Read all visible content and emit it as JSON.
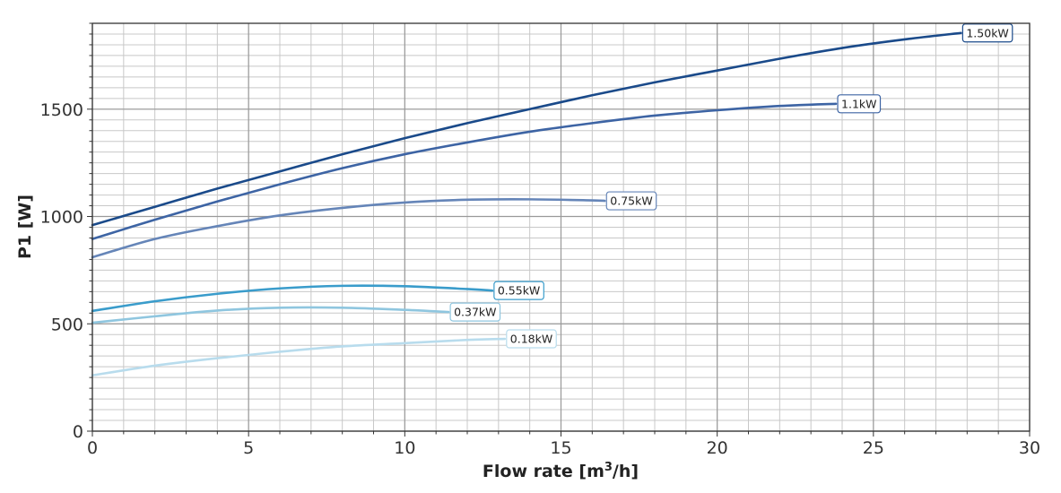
{
  "chart_data": {
    "type": "line",
    "title": "",
    "xlabel": "Flow rate [m³/h]",
    "xlabel_parts": {
      "main": "Flow rate [m",
      "sup": "3",
      "tail": "/h]"
    },
    "ylabel": "P1 [W]",
    "xlim": [
      0,
      30
    ],
    "ylim": [
      0,
      1900
    ],
    "x_ticks": [
      0,
      5,
      10,
      15,
      20,
      25,
      30
    ],
    "x_tick_labels": [
      "0",
      "5",
      "10",
      "15",
      "20",
      "25",
      "30"
    ],
    "y_ticks": [
      0,
      500,
      1000,
      1500
    ],
    "y_tick_labels": [
      "0",
      "500",
      "1000",
      "1500"
    ],
    "x_minor_step": 1,
    "y_minor_step": 50,
    "grid": true,
    "legend": "none",
    "series": [
      {
        "name": "1.50kW",
        "color": "#1a4a8a",
        "x": [
          0,
          2,
          4,
          6,
          8,
          10,
          12,
          14,
          16,
          18,
          20,
          22,
          24,
          26,
          27.8
        ],
        "y": [
          960,
          1045,
          1130,
          1210,
          1290,
          1365,
          1435,
          1500,
          1565,
          1625,
          1680,
          1735,
          1785,
          1825,
          1855
        ]
      },
      {
        "name": "1.1kW",
        "color": "#3d64a4",
        "x": [
          0,
          2,
          4,
          6,
          8,
          10,
          12,
          14,
          16,
          18,
          20,
          22,
          23.8
        ],
        "y": [
          895,
          985,
          1070,
          1150,
          1225,
          1290,
          1345,
          1395,
          1435,
          1470,
          1495,
          1515,
          1525
        ]
      },
      {
        "name": "0.75kW",
        "color": "#6585b8",
        "x": [
          0,
          2,
          4,
          6,
          8,
          10,
          12,
          14,
          16,
          16.4
        ],
        "y": [
          810,
          895,
          955,
          1005,
          1040,
          1065,
          1078,
          1080,
          1075,
          1073
        ]
      },
      {
        "name": "0.55kW",
        "color": "#3a9ccb",
        "x": [
          0,
          2,
          4,
          6,
          8,
          10,
          12,
          12.8
        ],
        "y": [
          560,
          605,
          640,
          665,
          677,
          675,
          662,
          655
        ]
      },
      {
        "name": "0.37kW",
        "color": "#8fc6df",
        "x": [
          0,
          2,
          4,
          6,
          8,
          10,
          11.4
        ],
        "y": [
          505,
          535,
          562,
          575,
          575,
          565,
          555
        ]
      },
      {
        "name": "0.18kW",
        "color": "#b8dced",
        "x": [
          0,
          2,
          4,
          6,
          8,
          10,
          12,
          13.2
        ],
        "y": [
          260,
          305,
          340,
          370,
          395,
          410,
          425,
          430
        ]
      }
    ]
  }
}
